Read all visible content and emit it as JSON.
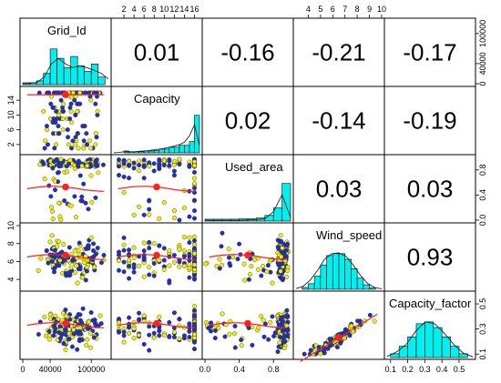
{
  "chart_data": {
    "type": "scatter-matrix",
    "variables": [
      "Grid_Id",
      "Capacity",
      "Used_area",
      "Wind_speed",
      "Capacity_factor"
    ],
    "correlations": [
      {
        "row": 0,
        "col": 1,
        "value": "0.01"
      },
      {
        "row": 0,
        "col": 2,
        "value": "-0.16"
      },
      {
        "row": 0,
        "col": 3,
        "value": "-0.21"
      },
      {
        "row": 0,
        "col": 4,
        "value": "-0.17"
      },
      {
        "row": 1,
        "col": 2,
        "value": "0.02"
      },
      {
        "row": 1,
        "col": 3,
        "value": "-0.14"
      },
      {
        "row": 1,
        "col": 4,
        "value": "-0.19"
      },
      {
        "row": 2,
        "col": 3,
        "value": "0.03"
      },
      {
        "row": 2,
        "col": 4,
        "value": "0.03"
      },
      {
        "row": 3,
        "col": 4,
        "value": "0.93"
      }
    ],
    "ranges": [
      [
        0,
        125000
      ],
      [
        0,
        17
      ],
      [
        0,
        1
      ],
      [
        3,
        10
      ],
      [
        0.08,
        0.58
      ]
    ],
    "ticks": {
      "bottom": [
        {
          "col": 0,
          "labels": [
            "0",
            "40000",
            "100000"
          ],
          "values": [
            0,
            40000,
            100000
          ]
        },
        {
          "col": 2,
          "labels": [
            "0.0",
            "0.4",
            "0.8"
          ],
          "values": [
            0,
            0.4,
            0.8
          ]
        },
        {
          "col": 4,
          "labels": [
            "0.1",
            "0.2",
            "0.3",
            "0.4",
            "0.5"
          ],
          "values": [
            0.1,
            0.2,
            0.3,
            0.4,
            0.5
          ]
        }
      ],
      "top": [
        {
          "col": 1,
          "labels": [
            "2",
            "4",
            "6",
            "8",
            "10",
            "12",
            "14",
            "16"
          ],
          "values": [
            2,
            4,
            6,
            8,
            10,
            12,
            14,
            16
          ]
        },
        {
          "col": 3,
          "labels": [
            "4",
            "5",
            "6",
            "7",
            "8",
            "9",
            "10"
          ],
          "values": [
            4,
            5,
            6,
            7,
            8,
            9,
            10
          ]
        }
      ],
      "left": [
        {
          "row": 1,
          "labels": [
            "2",
            "6",
            "10",
            "14"
          ],
          "values": [
            2,
            6,
            10,
            14
          ]
        },
        {
          "row": 3,
          "labels": [
            "4",
            "6",
            "8",
            "10"
          ],
          "values": [
            4,
            6,
            8,
            10
          ]
        }
      ],
      "right": [
        {
          "row": 0,
          "labels": [
            "0",
            "40000",
            "100000"
          ],
          "values": [
            0,
            40000,
            100000
          ]
        },
        {
          "row": 2,
          "labels": [
            "0.0",
            "0.4",
            "0.8"
          ],
          "values": [
            0,
            0.4,
            0.8
          ]
        },
        {
          "row": 4,
          "labels": [
            "0.1",
            "0.3",
            "0.5"
          ],
          "values": [
            0.1,
            0.3,
            0.5
          ]
        }
      ]
    },
    "histograms": [
      {
        "var": 0,
        "bins": [
          0,
          10000,
          20000,
          30000,
          40000,
          50000,
          60000,
          70000,
          80000,
          90000,
          100000,
          110000,
          120000
        ],
        "counts": [
          0.05,
          0.05,
          0.1,
          0.3,
          0.95,
          0.7,
          0.45,
          0.75,
          0.5,
          0.35,
          0.55,
          0.2
        ],
        "density": [
          0.02,
          0.03,
          0.06,
          0.2,
          0.55,
          0.7,
          0.55,
          0.45,
          0.5,
          0.45,
          0.38,
          0.3,
          0.15
        ]
      },
      {
        "var": 1,
        "bins": [
          0,
          1,
          2,
          3,
          4,
          5,
          6,
          7,
          8,
          9,
          10,
          11,
          12,
          13,
          14,
          15,
          16,
          17
        ],
        "counts": [
          0,
          0,
          0.05,
          0.03,
          0.03,
          0.03,
          0.05,
          0.05,
          0.06,
          0.1,
          0.1,
          0.15,
          0.15,
          0.2,
          0.2,
          0.3,
          1.0
        ],
        "density": [
          0.0,
          0.01,
          0.03,
          0.03,
          0.03,
          0.04,
          0.05,
          0.06,
          0.08,
          0.1,
          0.12,
          0.15,
          0.18,
          0.22,
          0.28,
          0.45,
          0.75,
          0.2
        ]
      },
      {
        "var": 2,
        "bins": [
          0,
          0.1,
          0.2,
          0.3,
          0.4,
          0.5,
          0.6,
          0.7,
          0.8,
          0.9,
          1.0
        ],
        "counts": [
          0.05,
          0.05,
          0.05,
          0.05,
          0.06,
          0.06,
          0.08,
          0.15,
          0.35,
          1.0
        ],
        "density": [
          0.02,
          0.02,
          0.02,
          0.02,
          0.02,
          0.03,
          0.04,
          0.06,
          0.25,
          0.7,
          0.1
        ]
      },
      {
        "var": 3,
        "bins": [
          3.5,
          4,
          4.5,
          5,
          5.5,
          6,
          6.5,
          7,
          7.5,
          8,
          8.5,
          9,
          9.5
        ],
        "counts": [
          0.05,
          0.15,
          0.35,
          0.65,
          0.9,
          0.95,
          0.95,
          0.8,
          0.55,
          0.3,
          0.12,
          0.04
        ],
        "density": [
          0.02,
          0.08,
          0.25,
          0.5,
          0.8,
          0.95,
          0.97,
          0.88,
          0.65,
          0.38,
          0.16,
          0.05,
          0.01
        ]
      },
      {
        "var": 4,
        "bins": [
          0.1,
          0.15,
          0.2,
          0.25,
          0.3,
          0.35,
          0.4,
          0.45,
          0.5,
          0.55
        ],
        "counts": [
          0.1,
          0.3,
          0.55,
          0.9,
          0.95,
          0.8,
          0.55,
          0.3,
          0.1
        ],
        "density": [
          0.03,
          0.15,
          0.35,
          0.7,
          0.95,
          0.9,
          0.65,
          0.35,
          0.12,
          0.02
        ]
      }
    ]
  }
}
